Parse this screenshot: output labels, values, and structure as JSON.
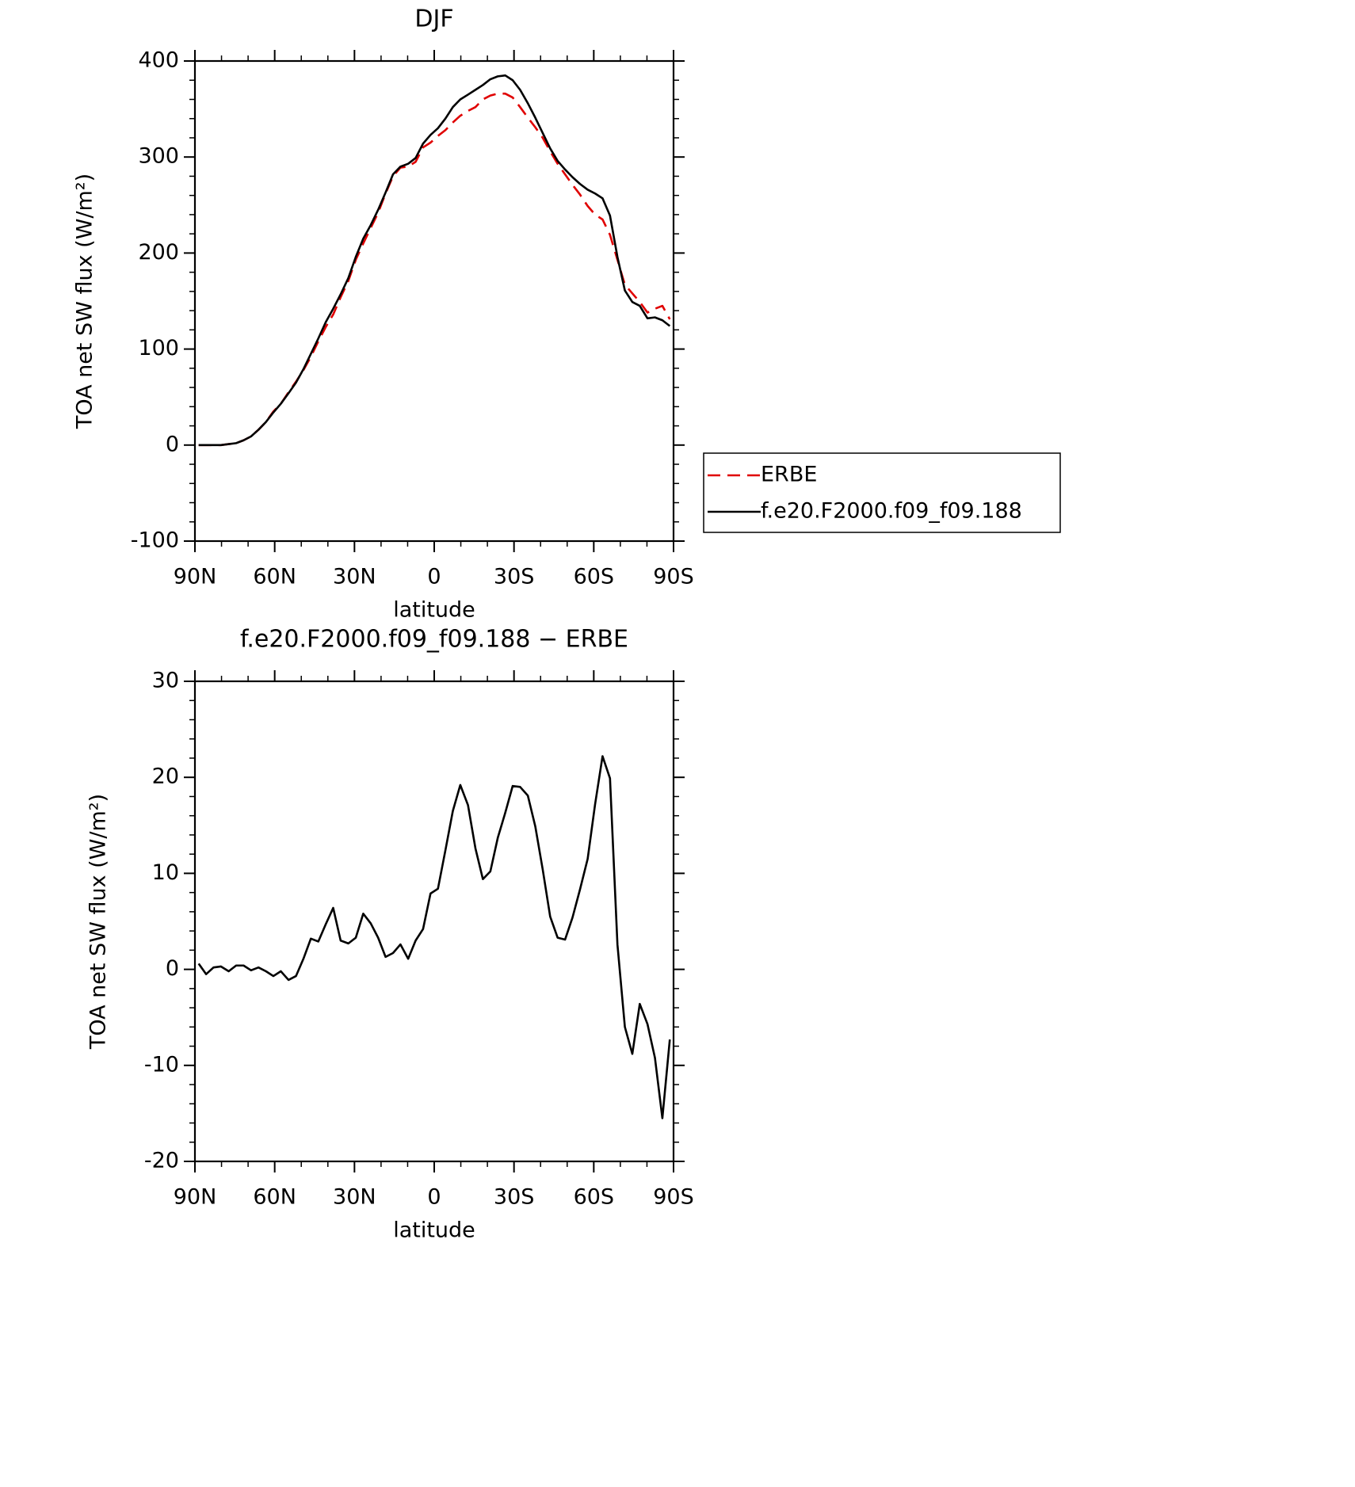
{
  "chart_data": [
    {
      "type": "line",
      "title": "DJF",
      "xlabel": "latitude",
      "ylabel": "TOA net SW flux (W/m²)",
      "x": [
        88.6,
        85.8,
        83.0,
        80.2,
        77.3,
        74.5,
        71.7,
        68.9,
        66.1,
        63.3,
        60.5,
        57.7,
        54.8,
        52.0,
        49.2,
        46.4,
        43.6,
        40.8,
        38.0,
        35.2,
        32.3,
        29.5,
        26.7,
        23.9,
        21.1,
        18.3,
        15.5,
        12.7,
        9.8,
        7.0,
        4.2,
        1.4,
        -1.4,
        -4.2,
        -7.0,
        -9.8,
        -12.7,
        -15.5,
        -18.3,
        -21.1,
        -23.9,
        -26.7,
        -29.5,
        -32.3,
        -35.2,
        -38.0,
        -40.8,
        -43.6,
        -46.4,
        -49.2,
        -52.0,
        -54.8,
        -57.7,
        -60.5,
        -63.3,
        -66.1,
        -68.9,
        -71.7,
        -74.5,
        -77.3,
        -80.2,
        -83.0,
        -85.8,
        -88.6
      ],
      "series": [
        {
          "name": "ERBE",
          "color": "#e00000",
          "dash": "dashed",
          "values": [
            0,
            0,
            0,
            0,
            1,
            2,
            5,
            9,
            16,
            24,
            35,
            43,
            55,
            66,
            78,
            92,
            108,
            123,
            136,
            154,
            171,
            193,
            210,
            226,
            242,
            262,
            280,
            289,
            290,
            295,
            310,
            315,
            322,
            328,
            336,
            343,
            348,
            352,
            360,
            364,
            366,
            366,
            362,
            352,
            341,
            331,
            320,
            306,
            293,
            282,
            271,
            261,
            249,
            240,
            235,
            219,
            193,
            167,
            158,
            149,
            138,
            142,
            145,
            131
          ]
        },
        {
          "name": "f.e20.F2000.f09_f09.188",
          "color": "#000000",
          "dash": "solid",
          "values": [
            0,
            0,
            0,
            0,
            1,
            2,
            5,
            9,
            16,
            24,
            34,
            43,
            54,
            65,
            79,
            95,
            111,
            128,
            142,
            157,
            174,
            196,
            215,
            229,
            245,
            263,
            282,
            290,
            293,
            299,
            314,
            323,
            330,
            340,
            352,
            360,
            365,
            370,
            375,
            381,
            384,
            385,
            380,
            370,
            356,
            341,
            325,
            309,
            296,
            287,
            279,
            272,
            266,
            262,
            257,
            239,
            196,
            161,
            149,
            145,
            132,
            133,
            130,
            124
          ]
        }
      ],
      "xlim": [
        90,
        -90
      ],
      "xticks": [
        {
          "value": 90,
          "label": "90N"
        },
        {
          "value": 60,
          "label": "60N"
        },
        {
          "value": 30,
          "label": "30N"
        },
        0,
        {
          "value": -30,
          "label": "30S"
        },
        {
          "value": -60,
          "label": "60S"
        },
        {
          "value": -90,
          "label": "90S"
        }
      ],
      "ylim": [
        -100,
        400
      ],
      "yticks": [
        -100,
        0,
        100,
        200,
        300,
        400
      ],
      "legend": "right"
    },
    {
      "type": "line",
      "title": "f.e20.F2000.f09_f09.188 − ERBE",
      "xlabel": "latitude",
      "ylabel": "TOA net SW flux (W/m²)",
      "x": [
        88.6,
        85.8,
        83.0,
        80.2,
        77.3,
        74.5,
        71.7,
        68.9,
        66.1,
        63.3,
        60.5,
        57.7,
        54.8,
        52.0,
        49.2,
        46.4,
        43.6,
        40.8,
        38.0,
        35.2,
        32.3,
        29.5,
        26.7,
        23.9,
        21.1,
        18.3,
        15.5,
        12.7,
        9.8,
        7.0,
        4.2,
        1.4,
        -1.4,
        -4.2,
        -7.0,
        -9.8,
        -12.7,
        -15.5,
        -18.3,
        -21.1,
        -23.9,
        -26.7,
        -29.5,
        -32.3,
        -35.2,
        -38.0,
        -40.8,
        -43.6,
        -46.4,
        -49.2,
        -52.0,
        -54.8,
        -57.7,
        -60.5,
        -63.3,
        -66.1,
        -68.9,
        -71.7,
        -74.5,
        -77.3,
        -80.2,
        -83.0,
        -85.8,
        -88.6
      ],
      "values": [
        0.6,
        -0.5,
        0.2,
        0.3,
        -0.2,
        0.4,
        0.4,
        -0.1,
        0.2,
        -0.2,
        -0.7,
        -0.2,
        -1.1,
        -0.7,
        1.1,
        3.2,
        2.9,
        4.7,
        6.4,
        3.0,
        2.7,
        3.3,
        5.8,
        4.8,
        3.3,
        1.3,
        1.7,
        2.6,
        1.1,
        3.0,
        4.2,
        7.9,
        8.4,
        12.4,
        16.5,
        19.2,
        17.1,
        12.6,
        9.4,
        10.2,
        13.7,
        16.3,
        19.1,
        19.0,
        18.1,
        14.9,
        10.4,
        5.5,
        3.3,
        3.1,
        5.4,
        8.3,
        11.5,
        17.2,
        22.2,
        19.9,
        2.6,
        -6.0,
        -8.8,
        -3.6,
        -5.7,
        -9.2,
        -15.5,
        -7.3
      ],
      "color": "#000000",
      "xlim": [
        90,
        -90
      ],
      "xticks": [
        {
          "value": 90,
          "label": "90N"
        },
        {
          "value": 60,
          "label": "60N"
        },
        {
          "value": 30,
          "label": "30N"
        },
        0,
        {
          "value": -30,
          "label": "30S"
        },
        {
          "value": -60,
          "label": "60S"
        },
        {
          "value": -90,
          "label": "90S"
        }
      ],
      "ylim": [
        -20,
        30
      ],
      "yticks": [
        -20,
        -10,
        0,
        10,
        20,
        30
      ]
    }
  ]
}
